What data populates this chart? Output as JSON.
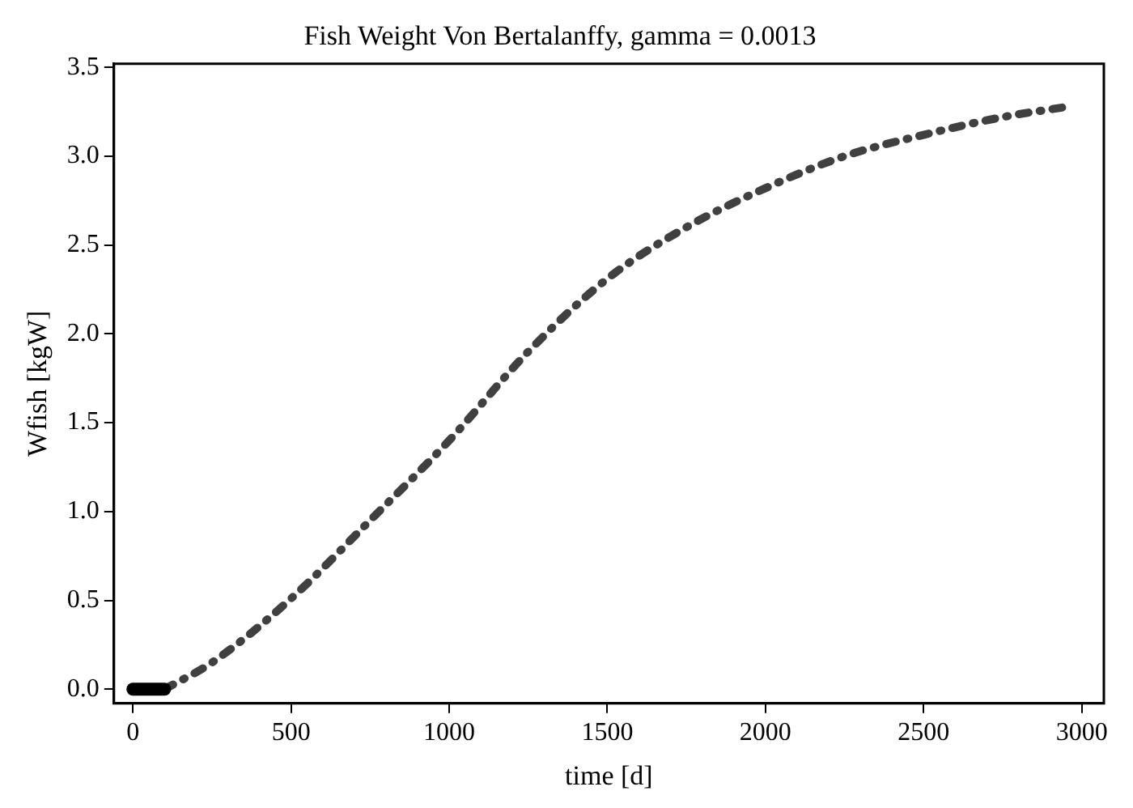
{
  "chart_data": {
    "type": "line",
    "title": "Fish Weight Von Bertalanffy, gamma = 0.0013",
    "xlabel": "time [d]",
    "ylabel": "Wfish [kgW]",
    "xlim": [
      -60,
      3070
    ],
    "xticks": [
      0,
      500,
      1000,
      1500,
      2000,
      2500,
      3000
    ],
    "ylim": [
      -0.08,
      3.52
    ],
    "yticks": [
      {
        "value": 0,
        "label": "0.0"
      },
      0.5,
      {
        "value": 1,
        "label": "1.0"
      },
      1.5,
      {
        "value": 2,
        "label": "2.0"
      },
      2.5,
      {
        "value": 3,
        "label": "3.0"
      },
      3.5
    ],
    "grid": false,
    "legend": false,
    "marker": "none",
    "series": [
      {
        "color": "#000000",
        "line_style": "solid",
        "x": [
          0,
          100
        ],
        "values": [
          0,
          0
        ]
      },
      {
        "color": "#404040",
        "line_style": "dashed",
        "x": [
          100,
          250,
          500,
          750,
          1000,
          1250,
          1500,
          1750,
          2000,
          2250,
          2500,
          2750,
          2960
        ],
        "values": [
          0,
          0.15,
          0.51,
          0.95,
          1.4,
          1.9,
          2.31,
          2.6,
          2.82,
          3.0,
          3.12,
          3.22,
          3.28
        ]
      }
    ]
  }
}
